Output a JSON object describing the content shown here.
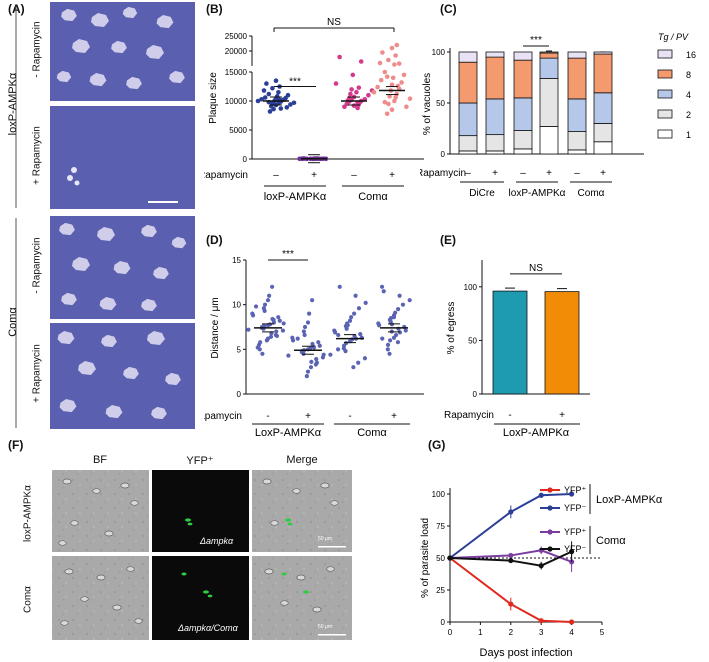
{
  "panels": {
    "a": "(A)",
    "b": "(B)",
    "c": "(C)",
    "d": "(D)",
    "e": "(E)",
    "f": "(F)",
    "g": "(G)"
  },
  "panel_a": {
    "strain_top": "loxP-AMPKα",
    "strain_bottom": "Comα",
    "minus_rapa": "- Rapamycin",
    "plus_rapa": "+ Rapamycin",
    "colors": {
      "stain": "#5a5fb0",
      "plaque": "#c9c8e8"
    }
  },
  "panel_f": {
    "columns": [
      "BF",
      "YFP⁺",
      "Merge"
    ],
    "rows": [
      "loxP-AMPKα",
      "Comα"
    ],
    "inset_top": "Δampkα",
    "inset_bottom": "Δampkα/Comα",
    "scale_text": "50 μm"
  },
  "chart_data": [
    {
      "id": "B",
      "type": "scatter",
      "ylabel": "Plaque size",
      "yticks": [
        "0",
        "5000",
        "10000",
        "15000",
        "20000",
        "25000"
      ],
      "xlabel_row": "Rapamycin",
      "groups": [
        "loxP-AMPKα",
        "Comα"
      ],
      "treat": [
        "–",
        "+",
        "–",
        "+"
      ],
      "sig": [
        "***",
        "NS"
      ],
      "series": [
        {
          "color": "#2b3f98",
          "mean": 10000,
          "values": [
            8200,
            8600,
            8900,
            9100,
            9300,
            9400,
            9500,
            9600,
            9700,
            9800,
            9900,
            10000,
            10100,
            10200,
            10300,
            10400,
            10500,
            10600,
            10800,
            11000,
            11200,
            11500,
            11800,
            12200,
            12500,
            13000,
            13500,
            8700,
            9800,
            10200
          ]
        },
        {
          "color": "#6d2f90",
          "mean": 50,
          "values": [
            20,
            30,
            40,
            50,
            60,
            70,
            80,
            40,
            30,
            60,
            50,
            40,
            70,
            80,
            20,
            50
          ]
        },
        {
          "color": "#d43a8c",
          "mean": 10000,
          "values": [
            8800,
            9000,
            9200,
            9400,
            9500,
            9700,
            9800,
            9900,
            10000,
            10100,
            10200,
            10300,
            10500,
            10700,
            11000,
            11200,
            11500,
            11800,
            12000,
            12300,
            13000,
            14500,
            16500,
            18000
          ]
        },
        {
          "color": "#f08b8b",
          "mean": 11800,
          "values": [
            7800,
            8500,
            9000,
            9500,
            10000,
            10400,
            10800,
            11200,
            11500,
            11800,
            12100,
            12400,
            12800,
            13200,
            13600,
            14000,
            14500,
            15000,
            15500,
            16000,
            17000,
            18500,
            19500,
            21000,
            22000,
            9800,
            10600,
            12600,
            14200,
            15800
          ]
        }
      ]
    },
    {
      "id": "C",
      "type": "bar",
      "ylabel": "% of vacuoles",
      "yticks": [
        "0",
        "50",
        "100"
      ],
      "xlabel_row": "Rapamycin",
      "groups": [
        "DiCre",
        "loxP-AMPKα",
        "Comα"
      ],
      "treat": [
        "–",
        "+",
        "–",
        "+",
        "–",
        "+"
      ],
      "sig": "***",
      "legend_title": "Tg / PV",
      "legend": [
        {
          "name": "16",
          "color": "#e9e2f5"
        },
        {
          "name": "8",
          "color": "#f39a6f"
        },
        {
          "name": "4",
          "color": "#b5c8ea"
        },
        {
          "name": "2",
          "color": "#e5e5e5"
        },
        {
          "name": "1",
          "color": "#ffffff"
        }
      ],
      "stacks": [
        [
          3,
          15,
          32,
          40,
          10
        ],
        [
          3,
          16,
          35,
          41,
          5
        ],
        [
          5,
          18,
          32,
          37,
          8
        ],
        [
          27,
          47,
          20,
          5,
          1
        ],
        [
          4,
          18,
          32,
          40,
          6
        ],
        [
          12,
          18,
          30,
          38,
          2
        ]
      ]
    },
    {
      "id": "D",
      "type": "scatter",
      "ylabel": "Distance / μm",
      "yticks": [
        "0",
        "5",
        "10",
        "15"
      ],
      "xlabel_row": "Rapamycin",
      "groups": [
        "LoxP-AMPKα",
        "Comα"
      ],
      "treat": [
        "-",
        "+",
        "-",
        "+"
      ],
      "sig": "***",
      "color": "#5b63b4",
      "series": [
        {
          "mean": 7.4,
          "values": [
            4.5,
            5.0,
            5.5,
            5.8,
            6.0,
            6.2,
            6.4,
            6.6,
            6.8,
            7.0,
            7.1,
            7.2,
            7.3,
            7.4,
            7.5,
            7.6,
            7.7,
            7.8,
            8.0,
            8.2,
            8.4,
            8.6,
            8.8,
            9.0,
            9.3,
            9.6,
            10.0,
            10.5,
            11.0,
            12.0,
            6.5,
            7.9,
            8.3,
            5.2,
            9.8
          ]
        },
        {
          "mean": 4.9,
          "values": [
            2.0,
            2.5,
            3.0,
            3.3,
            3.6,
            3.9,
            4.1,
            4.3,
            4.5,
            4.7,
            4.8,
            4.9,
            5.0,
            5.1,
            5.2,
            5.4,
            5.6,
            5.8,
            6.0,
            6.3,
            6.6,
            7.0,
            7.5,
            8.0,
            9.0,
            10.5,
            3.5,
            4.4,
            5.3,
            6.2
          ]
        },
        {
          "mean": 6.2,
          "values": [
            3.0,
            3.5,
            4.0,
            4.4,
            4.8,
            5.1,
            5.4,
            5.7,
            5.9,
            6.1,
            6.2,
            6.3,
            6.5,
            6.7,
            6.9,
            7.1,
            7.3,
            7.6,
            7.9,
            8.2,
            8.6,
            9.0,
            9.6,
            10.2,
            11.0,
            12.0,
            5.0,
            6.6,
            7.7
          ]
        },
        {
          "mean": 7.4,
          "values": [
            4.5,
            5.0,
            5.5,
            6.0,
            6.3,
            6.6,
            6.9,
            7.1,
            7.3,
            7.5,
            7.7,
            7.9,
            8.1,
            8.3,
            8.5,
            8.8,
            9.1,
            9.5,
            10.0,
            10.5,
            11.0,
            11.5,
            12.0,
            6.2,
            7.0,
            7.8,
            8.6,
            5.8
          ]
        }
      ]
    },
    {
      "id": "E",
      "type": "bar",
      "ylabel": "% of egress",
      "yticks": [
        "0",
        "50",
        "100"
      ],
      "xlabel_row": "Rapamycin",
      "group": "LoxP-AMPKα",
      "treat": [
        "-",
        "+"
      ],
      "sig": "NS",
      "values": [
        96,
        95.5
      ],
      "colors": [
        "#1f9bb1",
        "#f28c07"
      ]
    },
    {
      "id": "G",
      "type": "line",
      "ylabel": "% of parasite load",
      "xlabel": "Days post infection",
      "xticks": [
        "0",
        "1",
        "2",
        "3",
        "4",
        "5"
      ],
      "yticks": [
        "0",
        "25",
        "50",
        "75",
        "100"
      ],
      "x": [
        0,
        2,
        3,
        4
      ],
      "baseline": 50,
      "group_labels": [
        "LoxP-AMPKα",
        "Comα"
      ],
      "series": [
        {
          "name": "YFP⁺",
          "color": "#e0281e",
          "values": [
            50,
            14,
            1,
            0
          ],
          "err": [
            0,
            5,
            1,
            0
          ]
        },
        {
          "name": "YFP⁻",
          "color": "#2b3f98",
          "values": [
            50,
            86,
            99,
            100
          ],
          "err": [
            0,
            5,
            1,
            1
          ]
        },
        {
          "name": "YFP⁺",
          "color": "#7b3ea0",
          "values": [
            50,
            52,
            56,
            47
          ],
          "err": [
            0,
            1,
            3,
            8
          ]
        },
        {
          "name": "YFP⁻",
          "color": "#111111",
          "values": [
            50,
            48,
            44,
            55
          ],
          "err": [
            0,
            1,
            3,
            8
          ]
        }
      ]
    }
  ]
}
